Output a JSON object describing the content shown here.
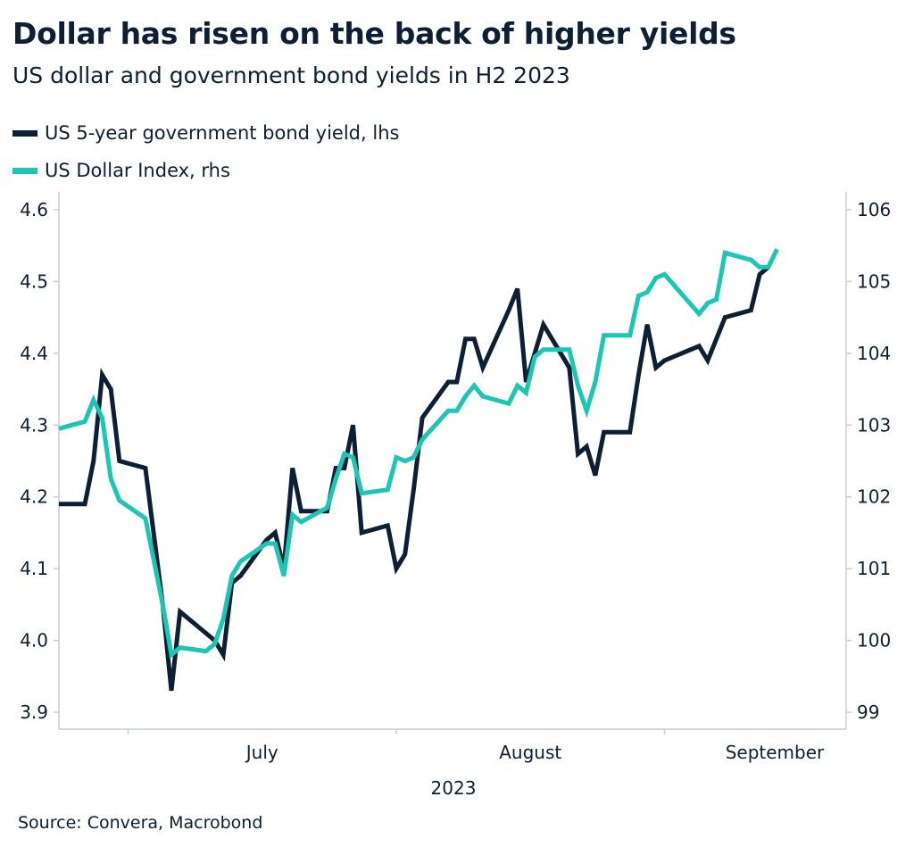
{
  "title": "Dollar has risen on the back of higher yields",
  "subtitle": "US dollar and government bond yields in H2 2023",
  "source": "Source: Convera, Macrobond",
  "chart_data": {
    "type": "line",
    "x_label": "2023",
    "x_months": [
      "July",
      "August",
      "September"
    ],
    "x_range": [
      "2023-06-23",
      "2023-09-22"
    ],
    "x_month_boundaries": [
      "2023-07-01",
      "2023-08-01",
      "2023-09-01"
    ],
    "y_left": {
      "ticks": [
        "4.6",
        "4.5",
        "4.4",
        "4.3",
        "4.2",
        "4.1",
        "4.0",
        "3.9"
      ],
      "range": [
        3.88,
        4.62
      ]
    },
    "y_right": {
      "ticks": [
        "106",
        "105",
        "104",
        "103",
        "102",
        "101",
        "100",
        "99"
      ],
      "range": [
        98.8,
        106.2
      ]
    },
    "grid": false,
    "legend_position": "top-left",
    "colors": {
      "yield": "#0c1f35",
      "dollar": "#1cc6b4"
    },
    "series": [
      {
        "name": "US 5-year government bond yield, lhs",
        "axis": "left",
        "points": [
          [
            "2023-06-23",
            4.19
          ],
          [
            "2023-06-26",
            4.19
          ],
          [
            "2023-06-27",
            4.25
          ],
          [
            "2023-06-28",
            4.37
          ],
          [
            "2023-06-29",
            4.35
          ],
          [
            "2023-06-30",
            4.25
          ],
          [
            "2023-07-03",
            4.24
          ],
          [
            "2023-07-05",
            4.05
          ],
          [
            "2023-07-06",
            3.93
          ],
          [
            "2023-07-07",
            4.04
          ],
          [
            "2023-07-10",
            4.01
          ],
          [
            "2023-07-11",
            4.0
          ],
          [
            "2023-07-12",
            3.98
          ],
          [
            "2023-07-13",
            4.08
          ],
          [
            "2023-07-14",
            4.09
          ],
          [
            "2023-07-17",
            4.14
          ],
          [
            "2023-07-18",
            4.15
          ],
          [
            "2023-07-19",
            4.1
          ],
          [
            "2023-07-20",
            4.24
          ],
          [
            "2023-07-21",
            4.18
          ],
          [
            "2023-07-24",
            4.18
          ],
          [
            "2023-07-25",
            4.24
          ],
          [
            "2023-07-26",
            4.24
          ],
          [
            "2023-07-27",
            4.3
          ],
          [
            "2023-07-28",
            4.15
          ],
          [
            "2023-07-31",
            4.16
          ],
          [
            "2023-08-01",
            4.1
          ],
          [
            "2023-08-02",
            4.12
          ],
          [
            "2023-08-03",
            4.21
          ],
          [
            "2023-08-04",
            4.31
          ],
          [
            "2023-08-07",
            4.36
          ],
          [
            "2023-08-08",
            4.36
          ],
          [
            "2023-08-09",
            4.42
          ],
          [
            "2023-08-10",
            4.42
          ],
          [
            "2023-08-11",
            4.38
          ],
          [
            "2023-08-14",
            4.46
          ],
          [
            "2023-08-15",
            4.49
          ],
          [
            "2023-08-16",
            4.36
          ],
          [
            "2023-08-17",
            4.4
          ],
          [
            "2023-08-18",
            4.44
          ],
          [
            "2023-08-21",
            4.38
          ],
          [
            "2023-08-22",
            4.26
          ],
          [
            "2023-08-23",
            4.27
          ],
          [
            "2023-08-24",
            4.23
          ],
          [
            "2023-08-25",
            4.29
          ],
          [
            "2023-08-28",
            4.29
          ],
          [
            "2023-08-29",
            4.37
          ],
          [
            "2023-08-30",
            4.44
          ],
          [
            "2023-08-31",
            4.38
          ],
          [
            "2023-09-01",
            4.39
          ],
          [
            "2023-09-05",
            4.41
          ],
          [
            "2023-09-06",
            4.39
          ],
          [
            "2023-09-07",
            4.42
          ],
          [
            "2023-09-08",
            4.45
          ],
          [
            "2023-09-11",
            4.46
          ],
          [
            "2023-09-12",
            4.51
          ],
          [
            "2023-09-13",
            4.52
          ]
        ]
      },
      {
        "name": "US Dollar Index, rhs",
        "axis": "right",
        "points": [
          [
            "2023-06-23",
            102.95
          ],
          [
            "2023-06-26",
            103.05
          ],
          [
            "2023-06-27",
            103.35
          ],
          [
            "2023-06-28",
            103.1
          ],
          [
            "2023-06-29",
            102.25
          ],
          [
            "2023-06-30",
            101.95
          ],
          [
            "2023-07-03",
            101.7
          ],
          [
            "2023-07-05",
            100.5
          ],
          [
            "2023-07-06",
            99.8
          ],
          [
            "2023-07-07",
            99.9
          ],
          [
            "2023-07-10",
            99.85
          ],
          [
            "2023-07-11",
            99.95
          ],
          [
            "2023-07-12",
            100.3
          ],
          [
            "2023-07-13",
            100.9
          ],
          [
            "2023-07-14",
            101.1
          ],
          [
            "2023-07-17",
            101.35
          ],
          [
            "2023-07-18",
            101.35
          ],
          [
            "2023-07-19",
            100.9
          ],
          [
            "2023-07-20",
            101.75
          ],
          [
            "2023-07-21",
            101.65
          ],
          [
            "2023-07-24",
            101.85
          ],
          [
            "2023-07-25",
            102.25
          ],
          [
            "2023-07-26",
            102.6
          ],
          [
            "2023-07-27",
            102.55
          ],
          [
            "2023-07-28",
            102.05
          ],
          [
            "2023-07-31",
            102.1
          ],
          [
            "2023-08-01",
            102.55
          ],
          [
            "2023-08-02",
            102.5
          ],
          [
            "2023-08-03",
            102.55
          ],
          [
            "2023-08-04",
            102.8
          ],
          [
            "2023-08-07",
            103.2
          ],
          [
            "2023-08-08",
            103.2
          ],
          [
            "2023-08-09",
            103.4
          ],
          [
            "2023-08-10",
            103.55
          ],
          [
            "2023-08-11",
            103.4
          ],
          [
            "2023-08-14",
            103.3
          ],
          [
            "2023-08-15",
            103.55
          ],
          [
            "2023-08-16",
            103.45
          ],
          [
            "2023-08-17",
            103.95
          ],
          [
            "2023-08-18",
            104.05
          ],
          [
            "2023-08-21",
            104.05
          ],
          [
            "2023-08-22",
            103.55
          ],
          [
            "2023-08-23",
            103.2
          ],
          [
            "2023-08-24",
            103.6
          ],
          [
            "2023-08-25",
            104.25
          ],
          [
            "2023-08-28",
            104.25
          ],
          [
            "2023-08-29",
            104.8
          ],
          [
            "2023-08-30",
            104.85
          ],
          [
            "2023-08-31",
            105.05
          ],
          [
            "2023-09-01",
            105.1
          ],
          [
            "2023-09-05",
            104.55
          ],
          [
            "2023-09-06",
            104.7
          ],
          [
            "2023-09-07",
            104.75
          ],
          [
            "2023-09-08",
            105.4
          ],
          [
            "2023-09-11",
            105.3
          ],
          [
            "2023-09-12",
            105.2
          ],
          [
            "2023-09-13",
            105.2
          ],
          [
            "2023-09-14",
            105.45
          ]
        ]
      }
    ]
  }
}
